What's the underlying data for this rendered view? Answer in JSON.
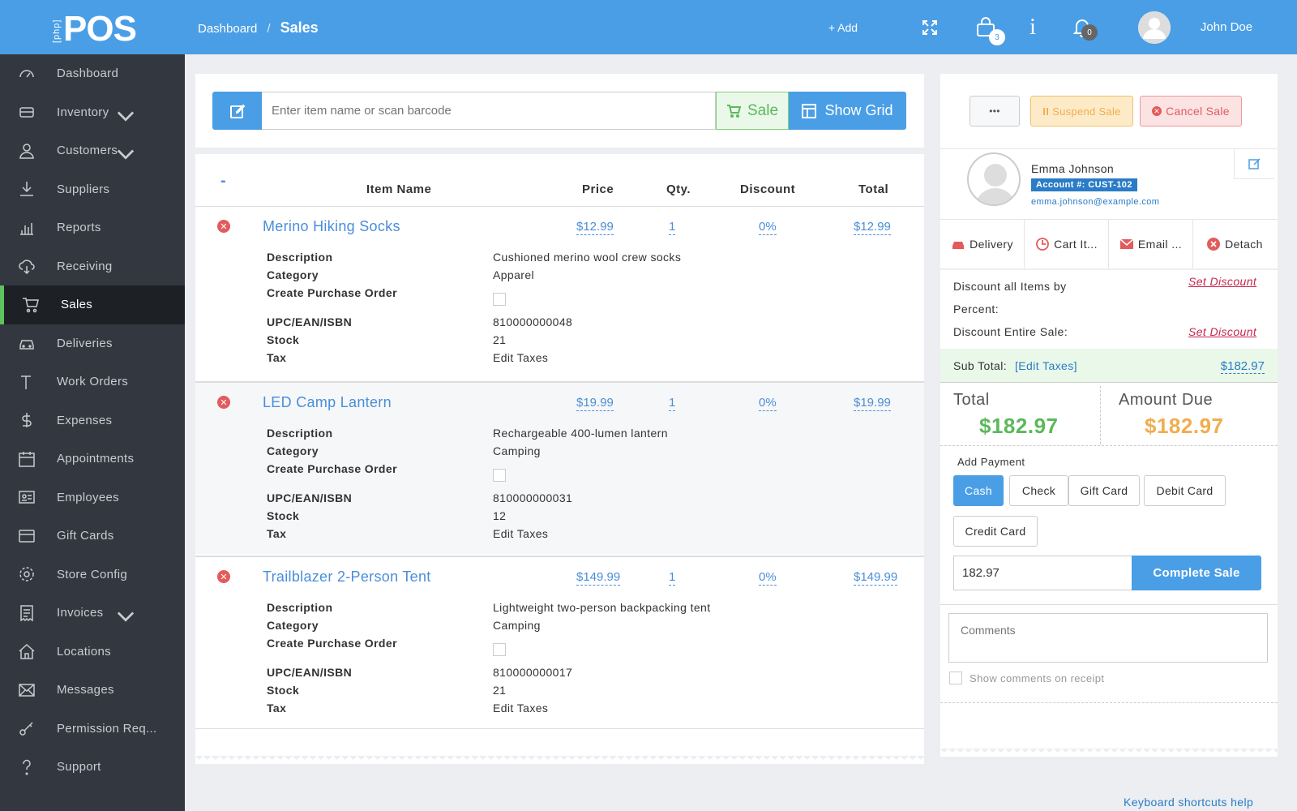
{
  "app": {
    "logo_small": "[php]",
    "logo_big": "POS"
  },
  "header": {
    "breadcrumb_parent": "Dashboard",
    "breadcrumb_sep": "/",
    "breadcrumb_current": "Sales",
    "add_label": "+ Add",
    "cart_count": "3",
    "notif_count": "0",
    "user_name": "John Doe"
  },
  "sidebar": {
    "items": [
      {
        "label": "Dashboard",
        "icon": "dashboard-icon"
      },
      {
        "label": "Inventory",
        "icon": "inventory-icon"
      },
      {
        "label": "Customers",
        "icon": "user-icon"
      },
      {
        "label": "Suppliers",
        "icon": "download-icon"
      },
      {
        "label": "Reports",
        "icon": "bar-chart-icon"
      },
      {
        "label": "Receiving",
        "icon": "cloud-download-icon"
      },
      {
        "label": "Sales",
        "icon": "cart-icon"
      },
      {
        "label": "Deliveries",
        "icon": "car-icon"
      },
      {
        "label": "Work Orders",
        "icon": "hammer-icon"
      },
      {
        "label": "Expenses",
        "icon": "dollar-icon"
      },
      {
        "label": "Appointments",
        "icon": "calendar-icon"
      },
      {
        "label": "Employees",
        "icon": "id-card-icon"
      },
      {
        "label": "Gift Cards",
        "icon": "credit-card-icon"
      },
      {
        "label": "Store Config",
        "icon": "gear-icon"
      },
      {
        "label": "Invoices",
        "icon": "invoice-icon"
      },
      {
        "label": "Locations",
        "icon": "home-icon"
      },
      {
        "label": "Messages",
        "icon": "envelope-icon"
      },
      {
        "label": "Permission Req...",
        "icon": "key-icon"
      },
      {
        "label": "Support",
        "icon": "question-icon"
      }
    ]
  },
  "search": {
    "placeholder": "Enter item name or scan barcode",
    "sale_label": "Sale",
    "grid_label": "Show Grid"
  },
  "table": {
    "collapse": "-",
    "headers": [
      "Item Name",
      "Price",
      "Qty.",
      "Discount",
      "Total"
    ],
    "detail_labels": [
      "Description",
      "Category",
      "Create Purchase Order",
      "UPC/EAN/ISBN",
      "Stock",
      "Tax"
    ],
    "items": [
      {
        "name": "Merino Hiking Socks",
        "price": "$12.99",
        "qty": "1",
        "discount": "0%",
        "total": "$12.99",
        "description": "Cushioned merino wool crew socks",
        "category": "Apparel",
        "upc": "810000000048",
        "stock": "21",
        "tax": "Edit Taxes"
      },
      {
        "name": "LED Camp Lantern",
        "price": "$19.99",
        "qty": "1",
        "discount": "0%",
        "total": "$19.99",
        "description": "Rechargeable 400-lumen lantern",
        "category": "Camping",
        "upc": "810000000031",
        "stock": "12",
        "tax": "Edit Taxes"
      },
      {
        "name": "Trailblazer 2-Person Tent",
        "price": "$149.99",
        "qty": "1",
        "discount": "0%",
        "total": "$149.99",
        "description": "Lightweight two-person backpacking tent",
        "category": "Camping",
        "upc": "810000000017",
        "stock": "21",
        "tax": "Edit Taxes"
      }
    ]
  },
  "actions": {
    "more": "•••",
    "suspend": "Suspend Sale",
    "cancel": "Cancel Sale"
  },
  "customer": {
    "name": "Emma Johnson",
    "account": "Account #: CUST-102",
    "email": "emma.johnson@example.com"
  },
  "cust_tabs": [
    "Delivery",
    "Cart It...",
    "Email ...",
    "Detach"
  ],
  "discount": {
    "percent_label_1": "Discount all Items by",
    "percent_label_2": "Percent:",
    "entire_label": "Discount Entire Sale:",
    "set": "Set Discount"
  },
  "subtotal": {
    "label": "Sub Total:",
    "edit": "[Edit Taxes]",
    "value": "$182.97"
  },
  "totals": {
    "total_label": "Total",
    "total_value": "$182.97",
    "due_label": "Amount Due",
    "due_value": "$182.97"
  },
  "payment": {
    "label": "Add Payment",
    "types": [
      "Cash",
      "Check",
      "Gift Card",
      "Debit Card",
      "Credit Card"
    ],
    "amount": "182.97",
    "complete": "Complete Sale"
  },
  "comments": {
    "placeholder": "Comments",
    "show_label": "Show comments on receipt"
  },
  "footer": {
    "help": "Keyboard shortcuts help"
  },
  "colors": {
    "primary": "#4a9ee6",
    "green": "#5cb85c",
    "orange": "#f0ad4e",
    "red": "#e35b5b",
    "sidebar": "#333840"
  }
}
